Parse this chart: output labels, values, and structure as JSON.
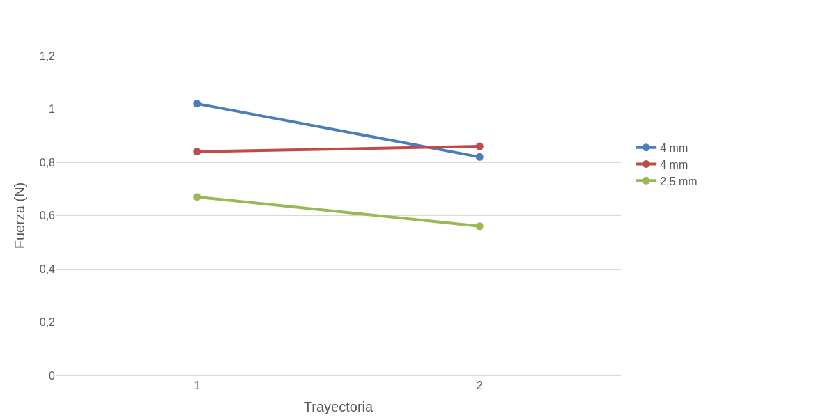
{
  "chart_data": {
    "type": "line",
    "xlabel": "Trayectoria",
    "ylabel": "Fuerza (N)",
    "categories": [
      "1",
      "2"
    ],
    "series": [
      {
        "name": "4 mm",
        "color": "#4a7ebb",
        "values": [
          1.02,
          0.82
        ]
      },
      {
        "name": "4 mm",
        "color": "#be4b48",
        "values": [
          0.84,
          0.86
        ]
      },
      {
        "name": "2,5 mm",
        "color": "#98b954",
        "values": [
          0.67,
          0.56
        ]
      }
    ],
    "ylim": [
      0,
      1.2
    ],
    "yticks": [
      {
        "value": 0,
        "label": "0"
      },
      {
        "value": 0.2,
        "label": "0,2"
      },
      {
        "value": 0.4,
        "label": "0,4"
      },
      {
        "value": 0.6,
        "label": "0,6"
      },
      {
        "value": 0.8,
        "label": "0,8"
      },
      {
        "value": 1,
        "label": "1"
      },
      {
        "value": 1.2,
        "label": "1,2"
      }
    ],
    "grid": "y",
    "legend": "right",
    "marker": "circle",
    "line_style": "solid"
  }
}
